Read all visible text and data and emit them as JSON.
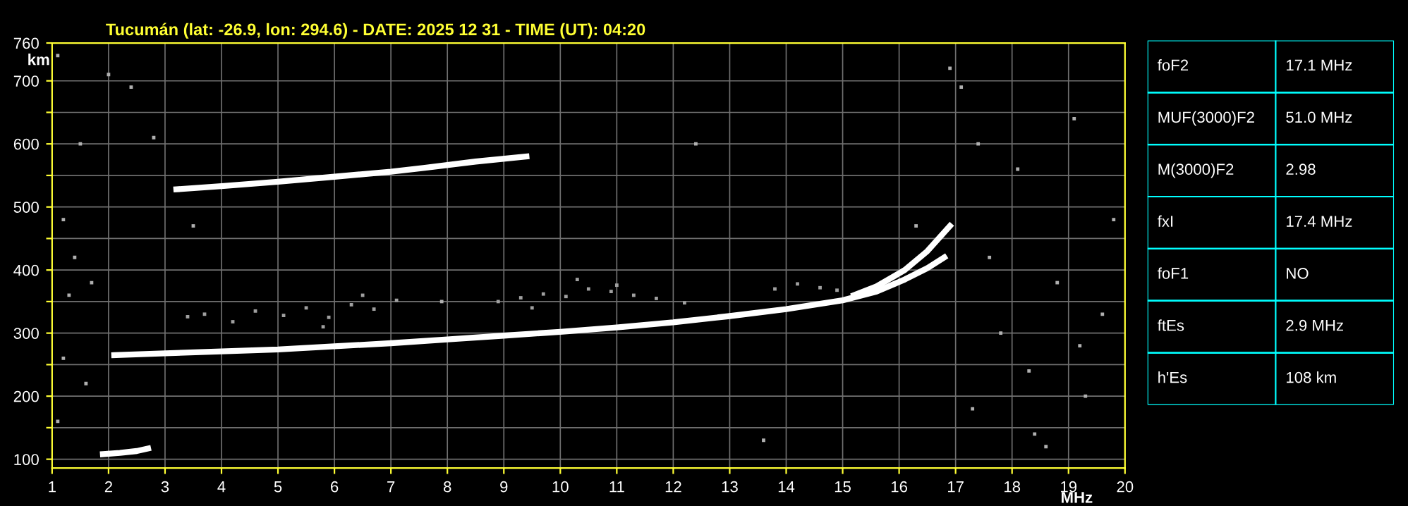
{
  "chart_data": [
    {
      "type": "scatter",
      "title": "Tucumán (lat: -26.9, lon: 294.6) - DATE: 2025 12 31 - TIME (UT): 04:20",
      "xlabel": "MHz",
      "ylabel": "km",
      "xlim": [
        1,
        20
      ],
      "xticks": [
        1,
        2,
        3,
        4,
        5,
        6,
        7,
        8,
        9,
        10,
        11,
        12,
        13,
        14,
        15,
        16,
        17,
        18,
        19,
        20
      ],
      "ylim": [
        86,
        760
      ],
      "yticks": [
        100,
        {
          "value": 150,
          "label": null
        },
        200,
        {
          "value": 250,
          "label": null
        },
        300,
        {
          "value": 350,
          "label": null
        },
        400,
        {
          "value": 450,
          "label": null
        },
        500,
        {
          "value": 550,
          "label": null
        },
        600,
        {
          "value": 650,
          "label": null
        },
        700,
        760
      ],
      "grid": true,
      "series": [
        {
          "type": "line",
          "color": "#ffffff",
          "x": [
            1.9,
            2.2,
            2.5,
            2.7
          ],
          "values": [
            108,
            110,
            113,
            117
          ]
        },
        {
          "type": "line",
          "color": "#ffffff",
          "x": [
            2.1,
            3,
            4,
            5,
            6,
            7,
            8,
            9,
            10,
            11,
            12,
            13,
            14,
            15,
            15.6,
            16.1,
            16.5,
            16.8
          ],
          "values": [
            265,
            268,
            271,
            274,
            279,
            284,
            290,
            296,
            302,
            309,
            317,
            327,
            338,
            352,
            366,
            385,
            403,
            420
          ]
        },
        {
          "type": "line",
          "color": "#ffffff",
          "x": [
            15.2,
            15.6,
            16.1,
            16.5,
            16.9
          ],
          "values": [
            360,
            374,
            400,
            430,
            470
          ]
        },
        {
          "type": "line",
          "color": "#ffffff",
          "x": [
            3.2,
            4,
            5,
            6,
            7,
            7.6,
            8.5,
            9.4
          ],
          "values": [
            528,
            533,
            540,
            548,
            556,
            562,
            572,
            580
          ]
        },
        {
          "type": "scatter",
          "marker": "square",
          "color": "#a0a0a0",
          "x": [
            3.4,
            3.7,
            4.2,
            4.6,
            5.1,
            5.5,
            5.9,
            6.3,
            6.7,
            7.1,
            8.9,
            9.3,
            9.7,
            10.1,
            10.5,
            10.9,
            11.3,
            11.7,
            12.2,
            13.8,
            14.2,
            14.6,
            14.9,
            9.5,
            10.3,
            11.0,
            5.8,
            6.5
          ],
          "values": [
            326,
            330,
            318,
            335,
            328,
            340,
            325,
            345,
            338,
            352,
            350,
            356,
            362,
            358,
            370,
            366,
            360,
            355,
            348,
            370,
            378,
            372,
            368,
            340,
            385,
            376,
            310,
            360
          ]
        },
        {
          "type": "scatter",
          "marker": "square",
          "color": "#b0b0b0",
          "x": [
            1.1,
            1.2,
            1.4,
            1.3,
            1.6,
            1.1,
            1.5,
            2.0,
            2.8,
            3.5,
            7.9,
            12.4,
            13.6,
            16.3,
            16.9,
            17.3,
            17.6,
            17.8,
            18.1,
            18.3,
            18.6,
            18.8,
            19.1,
            19.3,
            19.6,
            19.8,
            17.4,
            18.4,
            19.2,
            17.1,
            1.2,
            1.7,
            2.4
          ],
          "values": [
            740,
            480,
            420,
            360,
            220,
            160,
            600,
            710,
            610,
            470,
            350,
            600,
            130,
            470,
            720,
            180,
            420,
            300,
            560,
            240,
            120,
            380,
            640,
            200,
            330,
            480,
            600,
            140,
            280,
            690,
            260,
            380,
            690
          ]
        }
      ]
    },
    {
      "type": "other",
      "annotations": [
        "foF2",
        "17.1 MHz",
        "MUF(3000)F2",
        "51.0 MHz",
        "M(3000)F2",
        "2.98",
        "fxI",
        "17.4 MHz",
        "foF1",
        "NO",
        "ftEs",
        "2.9 MHz",
        "h'Es",
        "108 km"
      ]
    }
  ]
}
